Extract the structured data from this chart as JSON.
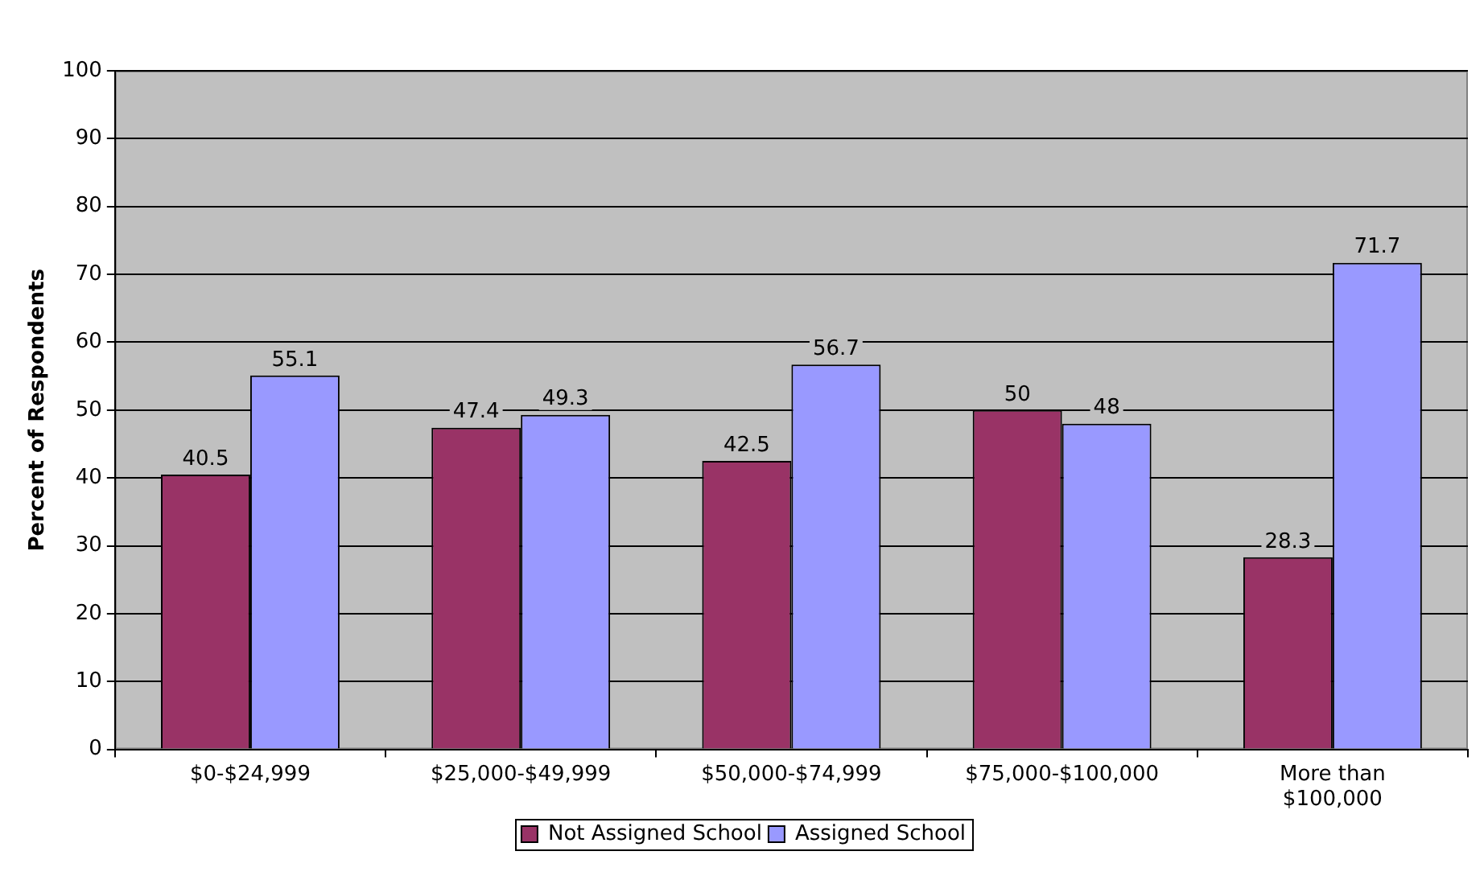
{
  "chart_data": {
    "type": "bar",
    "ylabel": "Percent of Respondents",
    "categories": [
      "$0-$24,999",
      "$25,000-$49,999",
      "$50,000-$74,999",
      "$75,000-$100,000",
      "More than $100,000"
    ],
    "series": [
      {
        "name": "Not Assigned School",
        "color": "#993366",
        "values": [
          40.5,
          47.4,
          42.5,
          50,
          28.3
        ]
      },
      {
        "name": "Assigned School",
        "color": "#9999ff",
        "values": [
          55.1,
          49.3,
          56.7,
          48,
          71.7
        ]
      }
    ],
    "ylim": [
      0,
      100
    ],
    "yticks": [
      0,
      10,
      20,
      30,
      40,
      50,
      60,
      70,
      80,
      90,
      100
    ],
    "grid": "y",
    "legend": "bottom",
    "data_labels": true
  }
}
